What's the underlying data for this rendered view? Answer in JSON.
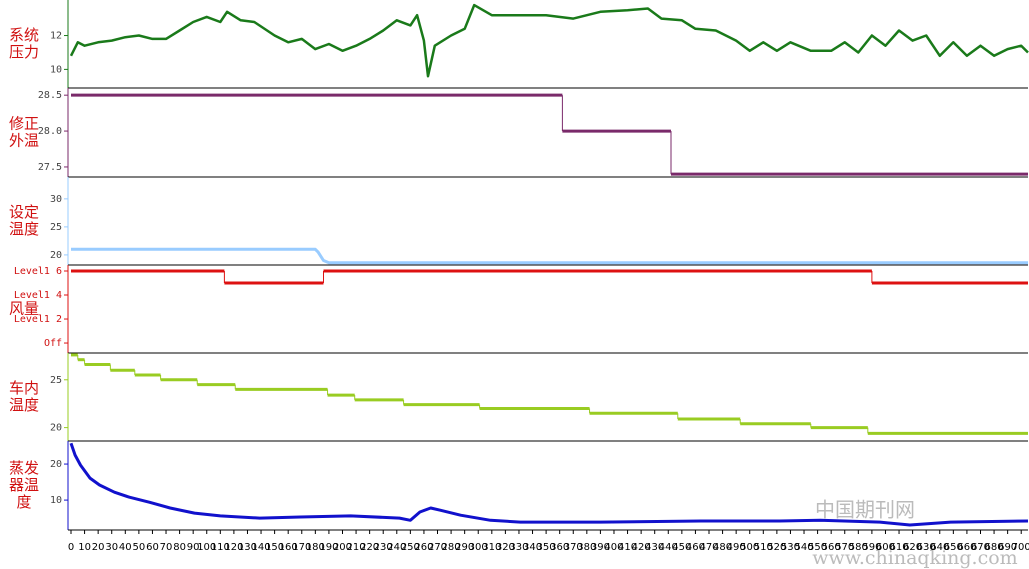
{
  "chart_data": [
    {
      "type": "line",
      "ylabel": [
        "系统",
        "压力"
      ],
      "xlim": [
        0,
        705
      ],
      "ylim": [
        8.9,
        14.1
      ],
      "yticks": [
        10,
        12
      ],
      "series": [
        {
          "color": "#1a7a1a",
          "x": [
            0,
            5,
            10,
            20,
            30,
            40,
            50,
            60,
            70,
            80,
            90,
            100,
            110,
            115,
            125,
            135,
            150,
            160,
            170,
            180,
            190,
            200,
            210,
            220,
            230,
            240,
            250,
            255,
            260,
            263,
            268,
            280,
            290,
            297,
            310,
            330,
            350,
            370,
            390,
            410,
            425,
            435,
            450,
            460,
            475,
            490,
            500,
            510,
            520,
            530,
            545,
            560,
            570,
            580,
            590,
            600,
            610,
            620,
            630,
            640,
            650,
            660,
            670,
            680,
            690,
            700,
            705
          ],
          "values": [
            10.8,
            11.6,
            11.4,
            11.6,
            11.7,
            11.9,
            12.0,
            11.8,
            11.8,
            12.3,
            12.8,
            13.1,
            12.8,
            13.4,
            12.9,
            12.8,
            12.0,
            11.6,
            11.8,
            11.2,
            11.5,
            11.1,
            11.4,
            11.8,
            12.3,
            12.9,
            12.6,
            13.2,
            11.7,
            9.6,
            11.4,
            12.0,
            12.4,
            13.8,
            13.2,
            13.2,
            13.2,
            13.0,
            13.4,
            13.5,
            13.6,
            13.0,
            12.9,
            12.4,
            12.3,
            11.7,
            11.1,
            11.6,
            11.1,
            11.6,
            11.1,
            11.1,
            11.6,
            11.0,
            12.0,
            11.4,
            12.3,
            11.7,
            12.0,
            10.8,
            11.6,
            10.8,
            11.4,
            10.8,
            11.2,
            11.4,
            11.0
          ]
        }
      ]
    },
    {
      "type": "step",
      "ylabel": [
        "修正",
        "外温"
      ],
      "xlim": [
        0,
        705
      ],
      "ylim": [
        27.36,
        28.6
      ],
      "yticks": [
        27.5,
        {
          "value": 28.0,
          "label": "28.0"
        },
        28.5
      ],
      "series": [
        {
          "color": "#7a2a6a",
          "x": [
            0,
            362,
            442,
            705
          ],
          "values": [
            28.5,
            28.0,
            27.4,
            27.4
          ]
        }
      ]
    },
    {
      "type": "line",
      "ylabel": [
        "设定",
        "温度"
      ],
      "xlim": [
        0,
        705
      ],
      "ylim": [
        18.2,
        33.9
      ],
      "yticks": [
        20,
        25,
        30
      ],
      "series": [
        {
          "color": "#99ccff",
          "x": [
            0,
            180,
            182,
            186,
            190,
            705
          ],
          "values": [
            21,
            21,
            20.5,
            19,
            18.6,
            18.6
          ]
        }
      ]
    },
    {
      "type": "step",
      "ylabel": [
        "风量"
      ],
      "xlim": [
        0,
        705
      ],
      "ylim": [
        -0.83,
        6.5
      ],
      "yticks": [
        {
          "value": 0,
          "label": "Off"
        },
        {
          "value": 2,
          "label": "Level1 2"
        },
        {
          "value": 4,
          "label": "Level1 4"
        },
        {
          "value": 6,
          "label": "Level1 6"
        }
      ],
      "series": [
        {
          "color": "#dd1111",
          "x": [
            0,
            113,
            186,
            590,
            705
          ],
          "values": [
            6,
            5,
            6,
            5,
            5
          ]
        }
      ]
    },
    {
      "type": "step",
      "ylabel": [
        "车内",
        "温度"
      ],
      "xlim": [
        0,
        705
      ],
      "ylim": [
        18.6,
        27.8
      ],
      "yticks": [
        20,
        25
      ],
      "series": [
        {
          "color": "#99cc22",
          "x": [
            0,
            5,
            10,
            29,
            47,
            66,
            93,
            121,
            189,
            209,
            245,
            301,
            382,
            447,
            493,
            545,
            587,
            705
          ],
          "values": [
            27.6,
            27.1,
            26.6,
            26.0,
            25.5,
            25.0,
            24.5,
            24.0,
            23.4,
            22.9,
            22.4,
            22.0,
            21.5,
            20.9,
            20.4,
            20.0,
            19.4,
            19.4
          ]
        }
      ]
    },
    {
      "type": "line",
      "ylabel": [
        "蒸发",
        "器温",
        "度"
      ],
      "xlim": [
        0,
        705
      ],
      "ylim": [
        1.7,
        26.4
      ],
      "yticks": [
        10,
        20
      ],
      "xticks": [
        0,
        10,
        20,
        30,
        40,
        50,
        60,
        70,
        80,
        90,
        100,
        110,
        120,
        130,
        140,
        150,
        160,
        170,
        180,
        190,
        200,
        210,
        220,
        230,
        240,
        250,
        260,
        270,
        280,
        290,
        300,
        310,
        320,
        330,
        340,
        350,
        360,
        370,
        380,
        390,
        400,
        410,
        420,
        430,
        440,
        450,
        460,
        470,
        480,
        490,
        500,
        510,
        520,
        530,
        540,
        550,
        560,
        570,
        580,
        590,
        600,
        610,
        620,
        630,
        640,
        650,
        660,
        670,
        680,
        690,
        700
      ],
      "series": [
        {
          "color": "#1111cc",
          "x": [
            0,
            3,
            7,
            14,
            21,
            32,
            43,
            58,
            73,
            91,
            110,
            139,
            169,
            206,
            242,
            250,
            257,
            265,
            272,
            287,
            309,
            331,
            390,
            464,
            522,
            552,
            596,
            618,
            648,
            705
          ],
          "values": [
            25.8,
            22.5,
            19.7,
            16.1,
            14.2,
            12.2,
            10.8,
            9.4,
            7.8,
            6.4,
            5.6,
            5.0,
            5.3,
            5.6,
            5.0,
            4.4,
            6.7,
            7.8,
            7.2,
            5.8,
            4.4,
            3.9,
            3.9,
            4.2,
            4.2,
            4.4,
            3.9,
            3.1,
            3.9,
            4.2
          ]
        }
      ]
    }
  ],
  "watermark": [
    "中国期刊网",
    "www.chinaqking.com"
  ]
}
